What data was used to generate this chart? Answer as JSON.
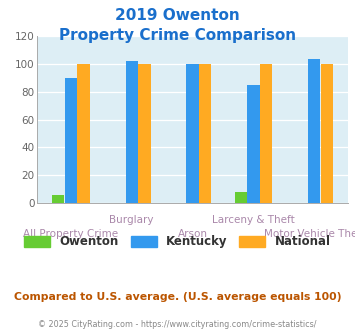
{
  "title_line1": "2019 Owenton",
  "title_line2": "Property Crime Comparison",
  "title_color": "#1a6fcc",
  "categories": [
    "All Property Crime",
    "Burglary",
    "Arson",
    "Larceny & Theft",
    "Motor Vehicle Theft"
  ],
  "owenton": [
    6,
    0,
    0,
    8,
    0
  ],
  "kentucky": [
    90,
    102,
    100,
    85,
    104
  ],
  "national": [
    100,
    100,
    100,
    100,
    100
  ],
  "owenton_color": "#66cc33",
  "kentucky_color": "#3399ee",
  "national_color": "#ffaa22",
  "ylim": [
    0,
    120
  ],
  "yticks": [
    0,
    20,
    40,
    60,
    80,
    100,
    120
  ],
  "plot_bg": "#ddeef5",
  "upper_labels": {
    "1": "Burglary",
    "3": "Larceny & Theft"
  },
  "lower_labels": {
    "0": "All Property Crime",
    "2": "Arson",
    "4": "Motor Vehicle Theft"
  },
  "xlabel_color": "#aa88aa",
  "xlabel_fontsize": 7.5,
  "footer_text": "Compared to U.S. average. (U.S. average equals 100)",
  "footer_color": "#bb5500",
  "credit_text": "© 2025 CityRating.com - https://www.cityrating.com/crime-statistics/",
  "credit_color": "#888888",
  "legend_labels": [
    "Owenton",
    "Kentucky",
    "National"
  ],
  "legend_colors": [
    "#66cc33",
    "#3399ee",
    "#ffaa22"
  ],
  "bar_width": 0.2,
  "bar_gap": 0.01
}
